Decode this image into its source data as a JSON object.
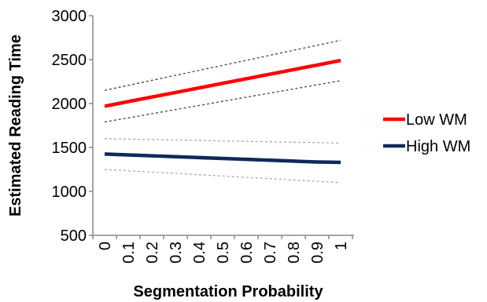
{
  "chart_data": {
    "type": "line",
    "xlabel": "Segmentation Probability",
    "ylabel": "Estimated Reading Time",
    "x": [
      0,
      0.1,
      0.2,
      0.3,
      0.4,
      0.5,
      0.6,
      0.7,
      0.8,
      0.9,
      1
    ],
    "x_tick_labels": [
      "0",
      "0.1",
      "0.2",
      "0.3",
      "0.4",
      "0.5",
      "0.6",
      "0.7",
      "0.8",
      "0.9",
      "1"
    ],
    "ylim": [
      500,
      3000
    ],
    "y_ticks": [
      500,
      1000,
      1500,
      2000,
      2500,
      3000
    ],
    "y_tick_labels": [
      "500",
      "1000",
      "1500",
      "2000",
      "2500",
      "3000"
    ],
    "grid": false,
    "legend_position": "right",
    "series": [
      {
        "name": "Low WM",
        "color": "#ff0000",
        "style": "solid",
        "values": [
          1970,
          2022,
          2074,
          2126,
          2178,
          2230,
          2282,
          2334,
          2386,
          2438,
          2490
        ]
      },
      {
        "name": "High WM",
        "color": "#0d2a5a",
        "style": "solid",
        "values": [
          1425,
          1415,
          1405,
          1395,
          1385,
          1375,
          1365,
          1355,
          1345,
          1335,
          1330
        ]
      }
    ],
    "confidence_bands": [
      {
        "for_series": "Low WM",
        "color": "#444444",
        "upper": [
          2150,
          2207,
          2264,
          2321,
          2378,
          2435,
          2492,
          2549,
          2606,
          2663,
          2720
        ],
        "lower": [
          1790,
          1837,
          1884,
          1931,
          1978,
          2025,
          2072,
          2119,
          2166,
          2213,
          2260
        ]
      },
      {
        "for_series": "High WM",
        "color": "#aaaaaa",
        "upper": [
          1600,
          1595,
          1590,
          1585,
          1580,
          1575,
          1570,
          1565,
          1560,
          1555,
          1550
        ],
        "lower": [
          1250,
          1235,
          1220,
          1205,
          1190,
          1175,
          1160,
          1145,
          1130,
          1115,
          1100
        ]
      }
    ]
  }
}
